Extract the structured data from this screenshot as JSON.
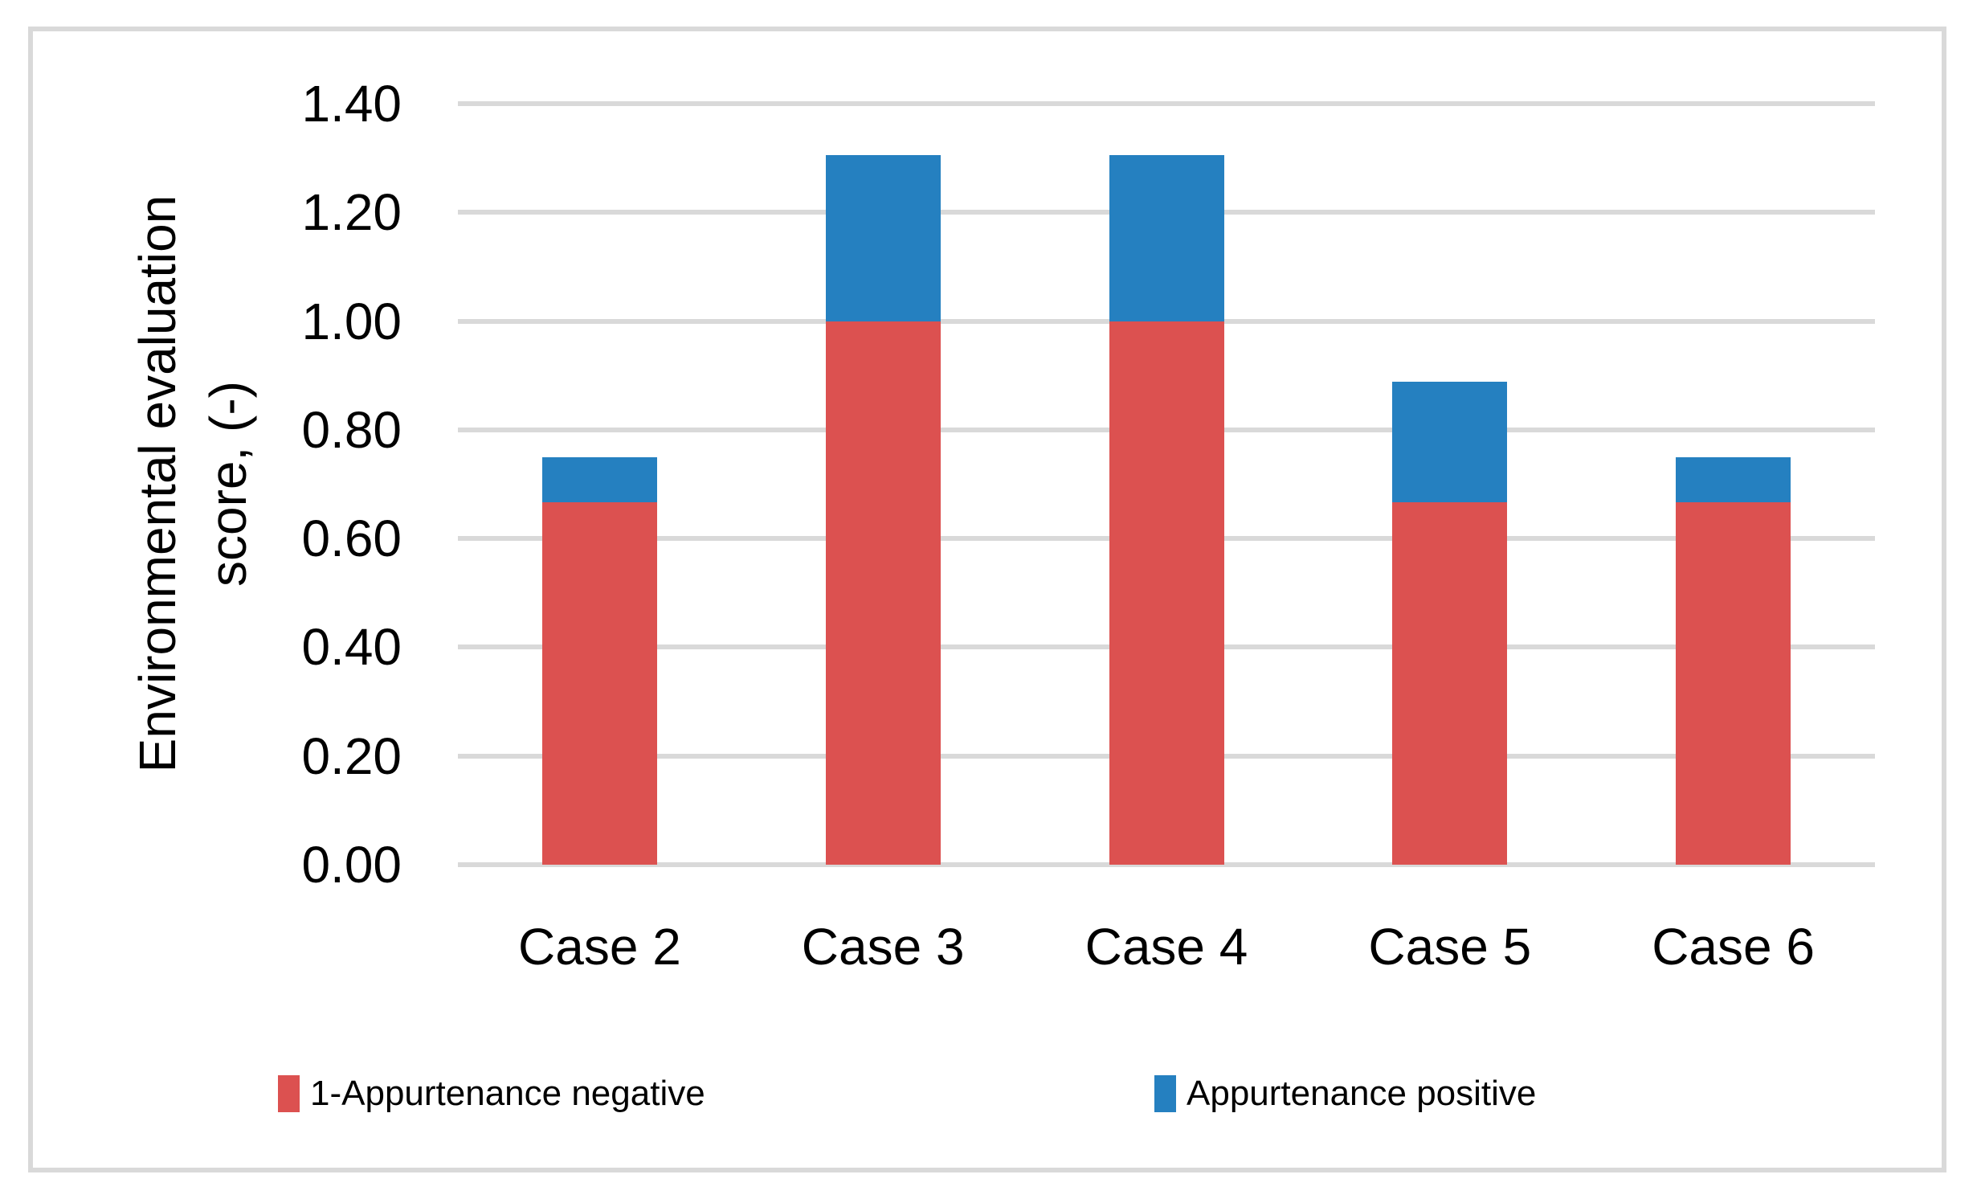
{
  "chart_data": {
    "type": "bar",
    "subtype": "stacked-column",
    "categories": [
      "Case 2",
      "Case 3",
      "Case 4",
      "Case 5",
      "Case 6"
    ],
    "series": [
      {
        "name": "1-Appurtenance negative",
        "color": "#DC5150",
        "values": [
          0.667,
          1.0,
          1.0,
          0.667,
          0.667
        ]
      },
      {
        "name": "Appurtenance positive",
        "color": "#2580C0",
        "values": [
          0.083,
          0.306,
          0.306,
          0.222,
          0.083
        ]
      }
    ],
    "stack_totals": [
      0.75,
      1.31,
      1.31,
      0.89,
      0.75
    ],
    "title": "",
    "xlabel": "",
    "ylabel": "Environmental evaluation score, (-)",
    "ylabel_lines": [
      "Environmental evaluation",
      "score, (-)"
    ],
    "ylim": [
      0.0,
      1.4
    ],
    "ytick_step": 0.2,
    "yticks": [
      "0.00",
      "0.20",
      "0.40",
      "0.60",
      "0.80",
      "1.00",
      "1.20",
      "1.40"
    ],
    "grid": true,
    "gridline_color": "#D9D9D9",
    "border_color": "#D9D9D9",
    "legend_position": "bottom"
  }
}
